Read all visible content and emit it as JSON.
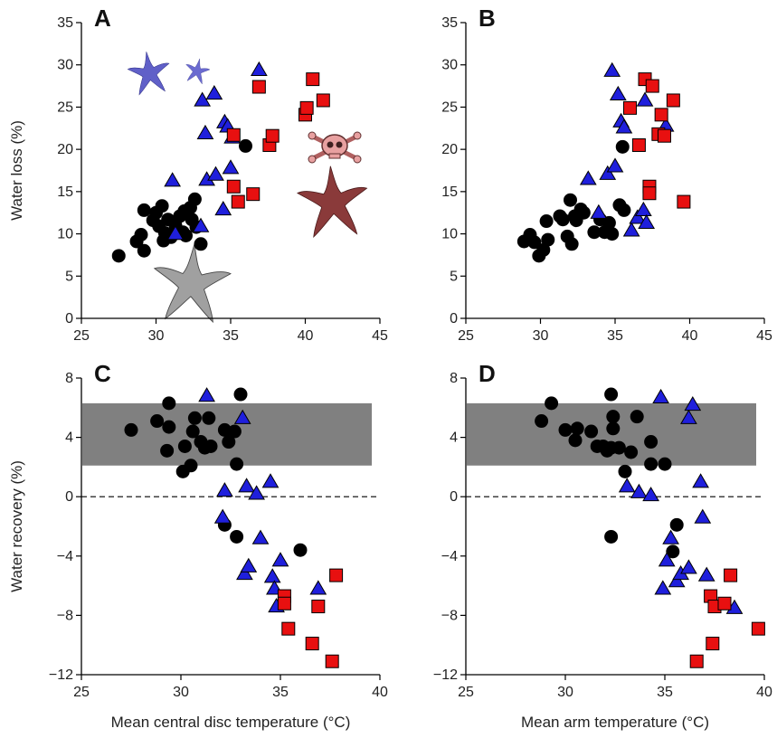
{
  "chart_data": [
    {
      "panel": "A",
      "type": "scatter",
      "ylabel": "Water loss (%)",
      "xlabel": "",
      "xlim": [
        25,
        45
      ],
      "ylim": [
        0,
        35
      ],
      "xticks": [
        25,
        30,
        35,
        40,
        45
      ],
      "yticks": [
        0,
        5,
        10,
        15,
        20,
        25,
        30,
        35
      ],
      "icons": [
        "starfish-blue-icon",
        "starfish-gray-icon",
        "starfish-red-icon",
        "skull-crossbones-icon"
      ],
      "series": [
        {
          "marker": "circle",
          "color": "#000000",
          "points": [
            [
              27.5,
              7.4
            ],
            [
              28.7,
              9.1
            ],
            [
              29.2,
              8.0
            ],
            [
              29.0,
              9.9
            ],
            [
              29.2,
              12.8
            ],
            [
              29.8,
              11.6
            ],
            [
              30.0,
              12.5
            ],
            [
              30.2,
              10.9
            ],
            [
              30.4,
              13.3
            ],
            [
              30.5,
              9.2
            ],
            [
              30.6,
              10.1
            ],
            [
              30.8,
              11.7
            ],
            [
              31.0,
              9.6
            ],
            [
              31.3,
              11.0
            ],
            [
              31.6,
              12.1
            ],
            [
              31.8,
              10.2
            ],
            [
              31.9,
              12.7
            ],
            [
              32.0,
              9.8
            ],
            [
              32.3,
              13.1
            ],
            [
              32.4,
              11.7
            ],
            [
              32.6,
              14.1
            ],
            [
              32.7,
              10.8
            ],
            [
              33.0,
              8.8
            ],
            [
              36.0,
              20.4
            ]
          ]
        },
        {
          "marker": "triangle",
          "color": "#1f1fdc",
          "points": [
            [
              31.1,
              16.3
            ],
            [
              31.3,
              10.0
            ],
            [
              33.0,
              10.9
            ],
            [
              33.1,
              25.8
            ],
            [
              33.3,
              21.9
            ],
            [
              33.4,
              16.4
            ],
            [
              33.9,
              26.6
            ],
            [
              34.0,
              17.0
            ],
            [
              34.5,
              12.9
            ],
            [
              34.6,
              23.2
            ],
            [
              34.8,
              22.7
            ],
            [
              35.0,
              17.8
            ],
            [
              35.1,
              21.4
            ],
            [
              36.9,
              29.4
            ]
          ]
        },
        {
          "marker": "square",
          "color": "#e81010",
          "points": [
            [
              35.2,
              21.7
            ],
            [
              35.2,
              15.6
            ],
            [
              35.5,
              13.8
            ],
            [
              36.5,
              14.7
            ],
            [
              36.9,
              27.4
            ],
            [
              37.6,
              20.5
            ],
            [
              37.8,
              21.6
            ],
            [
              40.0,
              24.1
            ],
            [
              40.1,
              24.9
            ],
            [
              40.5,
              28.3
            ],
            [
              41.2,
              25.8
            ]
          ]
        }
      ]
    },
    {
      "panel": "B",
      "type": "scatter",
      "ylabel": "",
      "xlabel": "",
      "xlim": [
        25,
        45
      ],
      "ylim": [
        0,
        35
      ],
      "xticks": [
        25,
        30,
        35,
        40,
        45
      ],
      "yticks": [
        0,
        5,
        10,
        15,
        20,
        25,
        30,
        35
      ],
      "series": [
        {
          "marker": "circle",
          "color": "#000000",
          "points": [
            [
              28.9,
              9.1
            ],
            [
              29.3,
              9.9
            ],
            [
              29.6,
              9.0
            ],
            [
              29.9,
              7.4
            ],
            [
              30.2,
              8.1
            ],
            [
              30.4,
              11.5
            ],
            [
              30.5,
              9.3
            ],
            [
              31.3,
              12.1
            ],
            [
              31.5,
              11.7
            ],
            [
              31.8,
              9.7
            ],
            [
              32.0,
              14.0
            ],
            [
              32.1,
              8.8
            ],
            [
              32.3,
              12.1
            ],
            [
              32.4,
              11.6
            ],
            [
              32.7,
              12.9
            ],
            [
              32.9,
              12.5
            ],
            [
              33.6,
              10.2
            ],
            [
              34.0,
              11.7
            ],
            [
              34.3,
              10.2
            ],
            [
              34.6,
              11.3
            ],
            [
              34.8,
              10.0
            ],
            [
              35.3,
              13.4
            ],
            [
              35.6,
              12.8
            ],
            [
              35.5,
              20.3
            ]
          ]
        },
        {
          "marker": "triangle",
          "color": "#1f1fdc",
          "points": [
            [
              33.2,
              16.5
            ],
            [
              33.9,
              12.5
            ],
            [
              34.5,
              17.1
            ],
            [
              34.8,
              29.3
            ],
            [
              35.0,
              18.0
            ],
            [
              35.2,
              26.5
            ],
            [
              35.4,
              23.3
            ],
            [
              35.6,
              22.6
            ],
            [
              36.1,
              10.4
            ],
            [
              36.5,
              11.9
            ],
            [
              36.9,
              12.8
            ],
            [
              37.0,
              25.8
            ],
            [
              37.1,
              11.3
            ],
            [
              38.4,
              22.8
            ]
          ]
        },
        {
          "marker": "square",
          "color": "#e81010",
          "points": [
            [
              36.0,
              24.9
            ],
            [
              36.6,
              20.5
            ],
            [
              37.0,
              28.3
            ],
            [
              37.3,
              15.6
            ],
            [
              37.3,
              14.8
            ],
            [
              37.5,
              27.5
            ],
            [
              37.9,
              21.8
            ],
            [
              38.1,
              24.1
            ],
            [
              38.3,
              21.6
            ],
            [
              38.9,
              25.8
            ],
            [
              39.6,
              13.8
            ]
          ]
        }
      ]
    },
    {
      "panel": "C",
      "type": "scatter",
      "ylabel": "Water recovery (%)",
      "xlabel": "Mean central disc temperature (°C)",
      "xlim": [
        25,
        40
      ],
      "ylim": [
        -12,
        8
      ],
      "xticks": [
        25,
        30,
        35,
        40
      ],
      "yticks": [
        -12,
        -8,
        -4,
        0,
        4,
        8
      ],
      "ytick_labels": [
        "−12",
        "−8",
        "−4",
        "0",
        "4",
        "8"
      ],
      "band": [
        2.1,
        6.3
      ],
      "reference_line": 0,
      "series": [
        {
          "marker": "circle",
          "color": "#000000",
          "points": [
            [
              27.5,
              4.5
            ],
            [
              28.8,
              5.1
            ],
            [
              29.3,
              3.1
            ],
            [
              29.4,
              4.7
            ],
            [
              29.4,
              6.3
            ],
            [
              30.1,
              1.7
            ],
            [
              30.2,
              3.4
            ],
            [
              30.5,
              2.1
            ],
            [
              30.6,
              4.4
            ],
            [
              30.7,
              5.3
            ],
            [
              31.0,
              3.7
            ],
            [
              31.2,
              3.3
            ],
            [
              31.4,
              5.3
            ],
            [
              31.5,
              3.4
            ],
            [
              32.2,
              4.5
            ],
            [
              32.4,
              3.7
            ],
            [
              32.7,
              4.4
            ],
            [
              32.8,
              2.2
            ],
            [
              33.0,
              6.9
            ],
            [
              32.2,
              -1.9
            ],
            [
              32.8,
              -2.7
            ],
            [
              36.0,
              -3.6
            ]
          ]
        },
        {
          "marker": "triangle",
          "color": "#1f1fdc",
          "points": [
            [
              31.3,
              6.8
            ],
            [
              32.1,
              -1.4
            ],
            [
              32.2,
              0.4
            ],
            [
              33.1,
              5.3
            ],
            [
              33.2,
              -5.2
            ],
            [
              33.3,
              0.7
            ],
            [
              33.4,
              -4.7
            ],
            [
              33.8,
              0.2
            ],
            [
              34.0,
              -2.8
            ],
            [
              34.5,
              1.0
            ],
            [
              34.6,
              -5.4
            ],
            [
              34.7,
              -6.2
            ],
            [
              34.8,
              -7.4
            ],
            [
              35.0,
              -4.3
            ],
            [
              36.9,
              -6.2
            ]
          ]
        },
        {
          "marker": "square",
          "color": "#e81010",
          "points": [
            [
              35.2,
              -6.7
            ],
            [
              35.2,
              -7.2
            ],
            [
              35.4,
              -8.9
            ],
            [
              36.6,
              -9.9
            ],
            [
              36.9,
              -7.4
            ],
            [
              37.6,
              -11.1
            ],
            [
              37.8,
              -5.3
            ]
          ]
        }
      ]
    },
    {
      "panel": "D",
      "type": "scatter",
      "ylabel": "",
      "xlabel": "Mean arm temperature (°C)",
      "xlim": [
        25,
        40
      ],
      "ylim": [
        -12,
        8
      ],
      "xticks": [
        25,
        30,
        35,
        40
      ],
      "yticks": [
        -12,
        -8,
        -4,
        0,
        4,
        8
      ],
      "ytick_labels": [
        "−12",
        "−8",
        "−4",
        "0",
        "4",
        "8"
      ],
      "band": [
        2.1,
        6.3
      ],
      "reference_line": 0,
      "series": [
        {
          "marker": "circle",
          "color": "#000000",
          "points": [
            [
              28.8,
              5.1
            ],
            [
              29.3,
              6.3
            ],
            [
              30.0,
              4.5
            ],
            [
              30.5,
              3.8
            ],
            [
              30.6,
              4.6
            ],
            [
              31.3,
              4.4
            ],
            [
              31.6,
              3.4
            ],
            [
              31.9,
              3.4
            ],
            [
              32.1,
              3.1
            ],
            [
              32.3,
              3.3
            ],
            [
              32.3,
              6.9
            ],
            [
              32.4,
              5.4
            ],
            [
              32.7,
              3.3
            ],
            [
              33.0,
              1.7
            ],
            [
              33.3,
              3.0
            ],
            [
              33.6,
              5.4
            ],
            [
              34.3,
              3.7
            ],
            [
              34.3,
              2.2
            ],
            [
              35.0,
              2.2
            ],
            [
              32.4,
              4.6
            ],
            [
              32.3,
              -2.7
            ],
            [
              35.4,
              -3.7
            ],
            [
              35.6,
              -1.9
            ]
          ]
        },
        {
          "marker": "triangle",
          "color": "#1f1fdc",
          "points": [
            [
              33.1,
              0.7
            ],
            [
              33.7,
              0.3
            ],
            [
              34.3,
              0.1
            ],
            [
              34.8,
              6.7
            ],
            [
              34.9,
              -6.2
            ],
            [
              35.1,
              -4.3
            ],
            [
              35.3,
              -2.8
            ],
            [
              35.6,
              -5.7
            ],
            [
              35.8,
              -5.2
            ],
            [
              36.2,
              -4.8
            ],
            [
              36.2,
              5.3
            ],
            [
              36.4,
              6.2
            ],
            [
              36.8,
              1.0
            ],
            [
              36.9,
              -1.4
            ],
            [
              37.1,
              -5.3
            ],
            [
              38.5,
              -7.5
            ]
          ]
        },
        {
          "marker": "square",
          "color": "#e81010",
          "points": [
            [
              36.6,
              -11.1
            ],
            [
              37.3,
              -6.7
            ],
            [
              37.4,
              -9.9
            ],
            [
              37.5,
              -7.4
            ],
            [
              38.0,
              -7.2
            ],
            [
              38.3,
              -5.3
            ],
            [
              39.7,
              -8.9
            ]
          ]
        }
      ]
    }
  ]
}
